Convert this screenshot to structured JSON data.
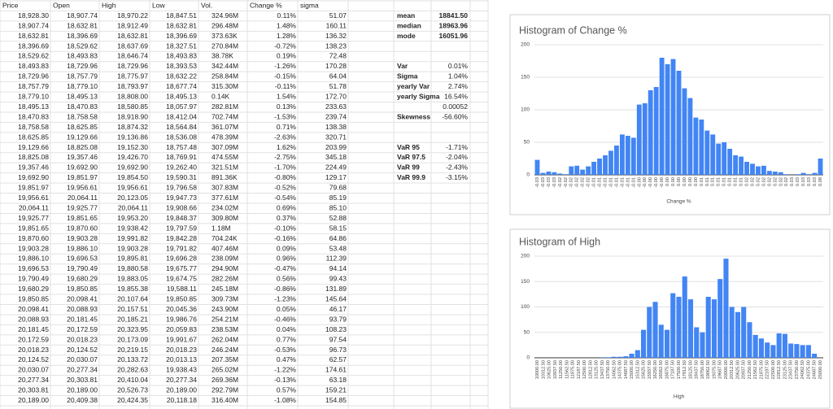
{
  "table": {
    "columns": [
      "Price",
      "Open",
      "High",
      "Low",
      "Vol.",
      "Change %",
      "sigma"
    ],
    "rows": [
      [
        "18,928.30",
        "18,907.74",
        "18,970.22",
        "18,847.51",
        "324.96M",
        "0.11%",
        "51.07"
      ],
      [
        "18,907.74",
        "18,632.81",
        "18,912.49",
        "18,632.81",
        "296.48M",
        "1.48%",
        "160.11"
      ],
      [
        "18,632.81",
        "18,396.69",
        "18,632.81",
        "18,396.69",
        "373.63K",
        "1.28%",
        "136.32"
      ],
      [
        "18,396.69",
        "18,529.62",
        "18,637.69",
        "18,327.51",
        "270.84M",
        "-0.72%",
        "138.23"
      ],
      [
        "18,529.62",
        "18,493.83",
        "18,646.74",
        "18,493.83",
        "38.78K",
        "0.19%",
        "72.48"
      ],
      [
        "18,493.83",
        "18,729.96",
        "18,729.96",
        "18,393.53",
        "342.44M",
        "-1.26%",
        "170.28"
      ],
      [
        "18,729.96",
        "18,757.79",
        "18,775.97",
        "18,632.22",
        "258.84M",
        "-0.15%",
        "64.04"
      ],
      [
        "18,757.79",
        "18,779.10",
        "18,793.97",
        "18,677.74",
        "315.30M",
        "-0.11%",
        "51.78"
      ],
      [
        "18,779.10",
        "18,495.13",
        "18,808.00",
        "18,495.13",
        "0.14K",
        "1.54%",
        "172.70"
      ],
      [
        "18,495.13",
        "18,470.83",
        "18,580.85",
        "18,057.97",
        "282.81M",
        "0.13%",
        "233.63"
      ],
      [
        "18,470.83",
        "18,758.58",
        "18,918.90",
        "18,412.04",
        "702.74M",
        "-1.53%",
        "239.74"
      ],
      [
        "18,758.58",
        "18,625.85",
        "18,874.32",
        "18,564.84",
        "361.07M",
        "0.71%",
        "138.38"
      ],
      [
        "18,625.85",
        "19,129.66",
        "19,136.86",
        "18,536.08",
        "478.39M",
        "-2.63%",
        "320.71"
      ],
      [
        "19,129.66",
        "18,825.08",
        "19,152.30",
        "18,757.48",
        "307.09M",
        "1.62%",
        "203.99"
      ],
      [
        "18,825.08",
        "19,357.46",
        "19,426.70",
        "18,769.91",
        "474.55M",
        "-2.75%",
        "345.18"
      ],
      [
        "19,357.46",
        "19,692.90",
        "19,692.90",
        "19,262.40",
        "321.51M",
        "-1.70%",
        "224.49"
      ],
      [
        "19,692.90",
        "19,851.97",
        "19,854.50",
        "19,590.31",
        "891.36K",
        "-0.80%",
        "129.17"
      ],
      [
        "19,851.97",
        "19,956.61",
        "19,956.61",
        "19,796.58",
        "307.83M",
        "-0.52%",
        "79.68"
      ],
      [
        "19,956.61",
        "20,064.11",
        "20,123.05",
        "19,947.73",
        "377.61M",
        "-0.54%",
        "85.19"
      ],
      [
        "20,064.11",
        "19,925.77",
        "20,064.11",
        "19,908.66",
        "234.02M",
        "0.69%",
        "85.10"
      ],
      [
        "19,925.77",
        "19,851.65",
        "19,953.20",
        "19,848.37",
        "309.80M",
        "0.37%",
        "52.88"
      ],
      [
        "19,851.65",
        "19,870.60",
        "19,938.42",
        "19,797.59",
        "1.18M",
        "-0.10%",
        "58.15"
      ],
      [
        "19,870.60",
        "19,903.28",
        "19,991.82",
        "19,842.28",
        "704.24K",
        "-0.16%",
        "64.86"
      ],
      [
        "19,903.28",
        "19,886.10",
        "19,903.28",
        "19,791.82",
        "407.46M",
        "0.09%",
        "53.48"
      ],
      [
        "19,886.10",
        "19,696.53",
        "19,895.81",
        "19,696.28",
        "238.09M",
        "0.96%",
        "112.39"
      ],
      [
        "19,696.53",
        "19,790.49",
        "19,880.58",
        "19,675.77",
        "294.90M",
        "-0.47%",
        "94.14"
      ],
      [
        "19,790.49",
        "19,680.29",
        "19,883.05",
        "19,674.75",
        "282.26M",
        "0.56%",
        "99.43"
      ],
      [
        "19,680.29",
        "19,850.85",
        "19,855.38",
        "19,588.11",
        "245.18M",
        "-0.86%",
        "131.89"
      ],
      [
        "19,850.85",
        "20,098.41",
        "20,107.64",
        "19,850.85",
        "309.73M",
        "-1.23%",
        "145.64"
      ],
      [
        "20,098.41",
        "20,088.93",
        "20,157.51",
        "20,045.36",
        "243.90M",
        "0.05%",
        "46.17"
      ],
      [
        "20,088.93",
        "20,181.45",
        "20,185.21",
        "19,986.76",
        "254.21M",
        "-0.46%",
        "93.79"
      ],
      [
        "20,181.45",
        "20,172.59",
        "20,323.95",
        "20,059.83",
        "238.53M",
        "0.04%",
        "108.23"
      ],
      [
        "20,172.59",
        "20,018.23",
        "20,173.09",
        "19,991.67",
        "262.04M",
        "0.77%",
        "97.54"
      ],
      [
        "20,018.23",
        "20,124.52",
        "20,219.15",
        "20,018.23",
        "246.24M",
        "-0.53%",
        "96.73"
      ],
      [
        "20,124.52",
        "20,030.07",
        "20,133.72",
        "20,013.13",
        "207.35M",
        "0.47%",
        "62.57"
      ],
      [
        "20,030.07",
        "20,277.34",
        "20,282.63",
        "19,938.43",
        "265.02M",
        "-1.22%",
        "174.61"
      ],
      [
        "20,277.34",
        "20,303.81",
        "20,410.04",
        "20,277.34",
        "269.36M",
        "-0.13%",
        "63.18"
      ],
      [
        "20,303.81",
        "20,189.00",
        "20,526.73",
        "20,189.00",
        "292.79M",
        "0.57%",
        "159.21"
      ],
      [
        "20,189.00",
        "20,409.38",
        "20,424.35",
        "20,118.18",
        "316.40M",
        "-1.08%",
        "154.85"
      ]
    ]
  },
  "stats": [
    {
      "label": "mean",
      "value": "18841.50"
    },
    {
      "label": "median",
      "value": "18963.96"
    },
    {
      "label": "mode",
      "value": "16051.96"
    },
    {
      "label": "Var",
      "value": "0.01%"
    },
    {
      "label": "Sigma",
      "value": "1.04%"
    },
    {
      "label": "yearly Var",
      "value": "2.74%"
    },
    {
      "label": "yearly Sigma",
      "value": "16.54%"
    },
    {
      "value": "0.00052"
    },
    {
      "label": "Skewness",
      "value": "-56.60%"
    },
    {
      "label": "VaR 95",
      "value": "-1.71%"
    },
    {
      "label": "VaR 97.5",
      "value": "-2.04%"
    },
    {
      "label": "VaR 99",
      "value": "-2.43%"
    },
    {
      "label": "VaR 99.9",
      "value": "-3.15%"
    }
  ],
  "charts": [
    {
      "type": "bar",
      "title": "Histogram of Change %",
      "x_label": "Change %",
      "color": "#4285f4",
      "categories": [
        "-0.03",
        "-0.03",
        "-0.03",
        "-0.03",
        "-0.02",
        "-0.02",
        "-0.02",
        "-0.02",
        "-0.02",
        "-0.02",
        "-0.01",
        "-0.01",
        "-0.01",
        "-0.01",
        "-0.01",
        "-0.01",
        "-0.01",
        "-0.01",
        "-0.00",
        "-0.00",
        "-0.00",
        "-0.00",
        "-0.00",
        "0.00",
        "0.00",
        "0.00",
        "0.00",
        "0.00",
        "0.00",
        "0.01",
        "0.01",
        "0.01",
        "0.01",
        "0.01",
        "0.01",
        "0.01",
        "0.01",
        "0.02",
        "0.02",
        "0.02",
        "0.02",
        "0.02",
        "0.02",
        "0.02",
        "0.02",
        "0.03",
        "0.03",
        "0.03",
        "0.03",
        "0.03",
        "0.08"
      ],
      "values": [
        23,
        3,
        5,
        4,
        2,
        1,
        13,
        14,
        8,
        13,
        20,
        25,
        30,
        37,
        45,
        62,
        60,
        57,
        108,
        110,
        130,
        135,
        180,
        170,
        178,
        160,
        133,
        118,
        88,
        85,
        68,
        62,
        48,
        50,
        40,
        30,
        28,
        20,
        17,
        13,
        14,
        6,
        5,
        4,
        1,
        0,
        1,
        3,
        1,
        3,
        25
      ],
      "ylim": [
        0,
        200
      ],
      "yticks": [
        0,
        50,
        100,
        150,
        200
      ],
      "grid": true
    },
    {
      "type": "bar",
      "title": "Histogram of High",
      "x_label": "High",
      "color": "#4285f4",
      "categories": [
        "10000.00",
        "10312.50",
        "10625.00",
        "10937.50",
        "11250.00",
        "11562.50",
        "11875.00",
        "12187.50",
        "12500.00",
        "12812.50",
        "13125.00",
        "13437.50",
        "13750.00",
        "14062.50",
        "14375.00",
        "14687.50",
        "15000.00",
        "15312.50",
        "15625.00",
        "15937.50",
        "16250.00",
        "16562.50",
        "16875.00",
        "17187.50",
        "17500.00",
        "17812.50",
        "18125.00",
        "18437.50",
        "18750.00",
        "19062.50",
        "19375.00",
        "19687.50",
        "20000.00",
        "20312.50",
        "20625.00",
        "20937.50",
        "21250.00",
        "21562.50",
        "21875.00",
        "22187.50",
        "22500.00",
        "22812.50",
        "23125.00",
        "23437.50",
        "23750.00",
        "24062.50",
        "24375.00",
        "24687.50",
        "25000.00"
      ],
      "values": [
        0,
        0,
        0,
        0,
        0,
        0,
        0,
        0,
        0,
        0,
        0,
        1,
        1,
        2,
        2,
        3,
        8,
        15,
        55,
        100,
        110,
        65,
        55,
        127,
        120,
        160,
        115,
        60,
        50,
        120,
        115,
        155,
        195,
        100,
        90,
        100,
        70,
        45,
        38,
        30,
        25,
        48,
        47,
        28,
        27,
        25,
        25,
        8,
        0
      ],
      "ylim": [
        0,
        200
      ],
      "yticks": [
        0,
        50,
        100,
        150,
        200
      ],
      "grid": true
    }
  ]
}
